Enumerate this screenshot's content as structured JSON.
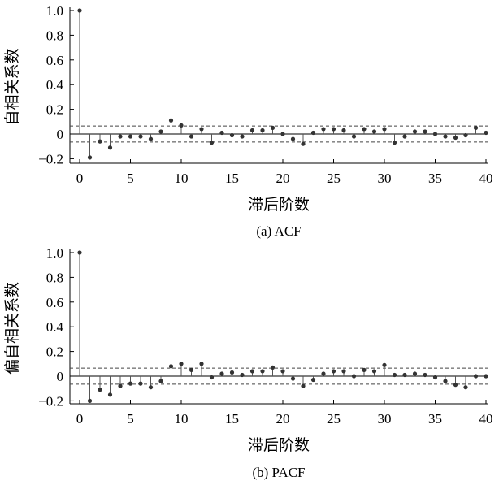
{
  "chart_data": [
    {
      "type": "stem",
      "caption": "(a)  ACF",
      "xlabel": "滞后阶数",
      "ylabel": "自相关系数",
      "xlim": [
        0,
        40
      ],
      "ylim": [
        -0.25,
        1.0
      ],
      "xticks": [
        0,
        5,
        10,
        15,
        20,
        25,
        30,
        35,
        40
      ],
      "yticks": [
        1.0,
        0.8,
        0.6,
        0.4,
        0.2,
        0,
        -0.2
      ],
      "ytick_labels": [
        "1.0",
        "0.8",
        "0.6",
        "0.4",
        "0.2",
        "0",
        "−0.2"
      ],
      "confidence_bounds": [
        0.065,
        -0.065
      ],
      "x": [
        0,
        1,
        2,
        3,
        4,
        5,
        6,
        7,
        8,
        9,
        10,
        11,
        12,
        13,
        14,
        15,
        16,
        17,
        18,
        19,
        20,
        21,
        22,
        23,
        24,
        25,
        26,
        27,
        28,
        29,
        30,
        31,
        32,
        33,
        34,
        35,
        36,
        37,
        38,
        39,
        40
      ],
      "values": [
        1.0,
        -0.19,
        -0.06,
        -0.11,
        -0.02,
        -0.02,
        -0.02,
        -0.04,
        0.02,
        0.11,
        0.07,
        -0.02,
        0.04,
        -0.07,
        0.01,
        -0.01,
        -0.02,
        0.03,
        0.03,
        0.05,
        0.0,
        -0.04,
        -0.08,
        0.01,
        0.04,
        0.04,
        0.03,
        -0.02,
        0.04,
        0.02,
        0.04,
        -0.07,
        -0.02,
        0.02,
        0.02,
        0.0,
        -0.02,
        -0.03,
        -0.01,
        0.05,
        0.01
      ]
    },
    {
      "type": "stem",
      "caption": "(b)  PACF",
      "xlabel": "滞后阶数",
      "ylabel": "偏自相关系数",
      "xlim": [
        0,
        40
      ],
      "ylim": [
        -0.25,
        1.0
      ],
      "xticks": [
        0,
        5,
        10,
        15,
        20,
        25,
        30,
        35,
        40
      ],
      "yticks": [
        1.0,
        0.8,
        0.6,
        0.4,
        0.2,
        0,
        -0.2
      ],
      "ytick_labels": [
        "1.0",
        "0.8",
        "0.6",
        "0.4",
        "0.2",
        "0",
        "−0.2"
      ],
      "confidence_bounds": [
        0.065,
        -0.065
      ],
      "x": [
        0,
        1,
        2,
        3,
        4,
        5,
        6,
        7,
        8,
        9,
        10,
        11,
        12,
        13,
        14,
        15,
        16,
        17,
        18,
        19,
        20,
        21,
        22,
        23,
        24,
        25,
        26,
        27,
        28,
        29,
        30,
        31,
        32,
        33,
        34,
        35,
        36,
        37,
        38,
        39,
        40
      ],
      "values": [
        1.0,
        -0.2,
        -0.11,
        -0.15,
        -0.08,
        -0.06,
        -0.06,
        -0.09,
        -0.04,
        0.08,
        0.1,
        0.05,
        0.1,
        -0.01,
        0.02,
        0.03,
        0.01,
        0.04,
        0.04,
        0.07,
        0.04,
        -0.02,
        -0.08,
        -0.03,
        0.02,
        0.04,
        0.04,
        0.0,
        0.05,
        0.04,
        0.09,
        0.01,
        0.01,
        0.02,
        0.01,
        -0.01,
        -0.04,
        -0.07,
        -0.09,
        0.0,
        0.0
      ]
    }
  ]
}
